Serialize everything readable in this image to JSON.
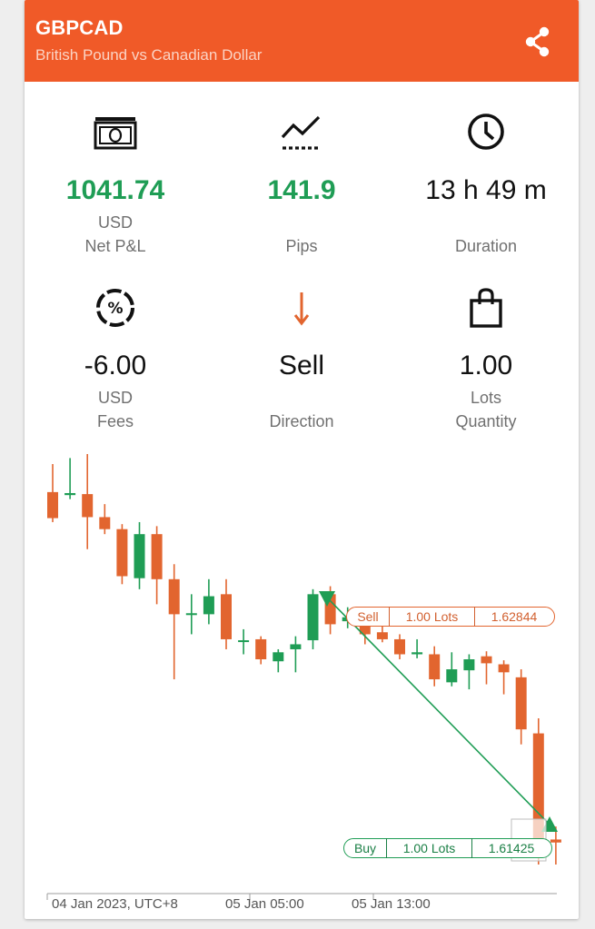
{
  "header": {
    "symbol": "GBPCAD",
    "subtitle": "British Pound vs Canadian Dollar",
    "share_icon": "share-icon"
  },
  "stats": {
    "net_pl": {
      "value": "1041.74",
      "unit": "USD",
      "label": "Net P&L",
      "icon": "money-icon"
    },
    "pips": {
      "value": "141.9",
      "label": "Pips",
      "icon": "trend-chart-icon"
    },
    "duration": {
      "value": "13 h 49 m",
      "label": "Duration",
      "icon": "clock-icon"
    },
    "fees": {
      "value": "-6.00",
      "unit": "USD",
      "label": "Fees",
      "icon": "percent-icon"
    },
    "direction": {
      "value": "Sell",
      "label": "Direction",
      "icon": "arrow-down-icon"
    },
    "quantity": {
      "value": "1.00",
      "unit": "Lots",
      "label": "Quantity",
      "icon": "shopping-bag-icon"
    }
  },
  "chart": {
    "x_labels": [
      "04 Jan 2023, UTC+8",
      "05 Jan 05:00",
      "05 Jan 13:00"
    ],
    "sell_order": {
      "side": "Sell",
      "lots": "1.00 Lots",
      "price": "1.62844"
    },
    "buy_order": {
      "side": "Buy",
      "lots": "1.00 Lots",
      "price": "1.61425"
    }
  },
  "colors": {
    "header": "#f05a28",
    "up": "#1f9d55",
    "down": "#e2652f"
  },
  "chart_data": {
    "type": "candlestick",
    "xlabels": [
      "04 Jan 2023, UTC+8",
      "05 Jan 05:00",
      "05 Jan 13:00"
    ],
    "trade_entry": {
      "side": "Sell",
      "price": 1.62844
    },
    "trade_exit": {
      "side": "Buy",
      "price": 1.61425
    },
    "candles": [
      {
        "o": 1.6312,
        "h": 1.634,
        "l": 1.6282,
        "c": 1.6286
      },
      {
        "o": 1.6309,
        "h": 1.6346,
        "l": 1.6305,
        "c": 1.6311
      },
      {
        "o": 1.631,
        "h": 1.635,
        "l": 1.6255,
        "c": 1.6287
      },
      {
        "o": 1.6287,
        "h": 1.63,
        "l": 1.627,
        "c": 1.6275
      },
      {
        "o": 1.6275,
        "h": 1.628,
        "l": 1.622,
        "c": 1.6228
      },
      {
        "o": 1.6226,
        "h": 1.6282,
        "l": 1.6215,
        "c": 1.627
      },
      {
        "o": 1.627,
        "h": 1.6278,
        "l": 1.62,
        "c": 1.6225
      },
      {
        "o": 1.6225,
        "h": 1.624,
        "l": 1.6125,
        "c": 1.619
      },
      {
        "o": 1.619,
        "h": 1.621,
        "l": 1.617,
        "c": 1.6191
      },
      {
        "o": 1.619,
        "h": 1.6225,
        "l": 1.618,
        "c": 1.6208
      },
      {
        "o": 1.621,
        "h": 1.6225,
        "l": 1.6155,
        "c": 1.6165
      },
      {
        "o": 1.6164,
        "h": 1.6175,
        "l": 1.615,
        "c": 1.6164
      },
      {
        "o": 1.6165,
        "h": 1.6168,
        "l": 1.614,
        "c": 1.6145
      },
      {
        "o": 1.6143,
        "h": 1.6155,
        "l": 1.6132,
        "c": 1.6152
      },
      {
        "o": 1.6155,
        "h": 1.6168,
        "l": 1.6132,
        "c": 1.616
      },
      {
        "o": 1.6164,
        "h": 1.6215,
        "l": 1.6155,
        "c": 1.621
      },
      {
        "o": 1.621,
        "h": 1.6218,
        "l": 1.617,
        "c": 1.618
      },
      {
        "o": 1.6183,
        "h": 1.6197,
        "l": 1.6176,
        "c": 1.6187
      },
      {
        "o": 1.6185,
        "h": 1.6188,
        "l": 1.616,
        "c": 1.617
      },
      {
        "o": 1.6172,
        "h": 1.6182,
        "l": 1.6162,
        "c": 1.6165
      },
      {
        "o": 1.6165,
        "h": 1.617,
        "l": 1.6145,
        "c": 1.615
      },
      {
        "o": 1.615,
        "h": 1.6165,
        "l": 1.6146,
        "c": 1.6152
      },
      {
        "o": 1.615,
        "h": 1.6158,
        "l": 1.6118,
        "c": 1.6125
      },
      {
        "o": 1.6122,
        "h": 1.6152,
        "l": 1.6118,
        "c": 1.6135
      },
      {
        "o": 1.6134,
        "h": 1.615,
        "l": 1.6115,
        "c": 1.6145
      },
      {
        "o": 1.6148,
        "h": 1.6153,
        "l": 1.612,
        "c": 1.6141
      },
      {
        "o": 1.614,
        "h": 1.6144,
        "l": 1.611,
        "c": 1.6132
      },
      {
        "o": 1.6127,
        "h": 1.6135,
        "l": 1.606,
        "c": 1.6075
      },
      {
        "o": 1.6071,
        "h": 1.6086,
        "l": 1.594,
        "c": 1.5955
      },
      {
        "o": 1.5965,
        "h": 1.5978,
        "l": 1.594,
        "c": 1.5962
      }
    ]
  }
}
